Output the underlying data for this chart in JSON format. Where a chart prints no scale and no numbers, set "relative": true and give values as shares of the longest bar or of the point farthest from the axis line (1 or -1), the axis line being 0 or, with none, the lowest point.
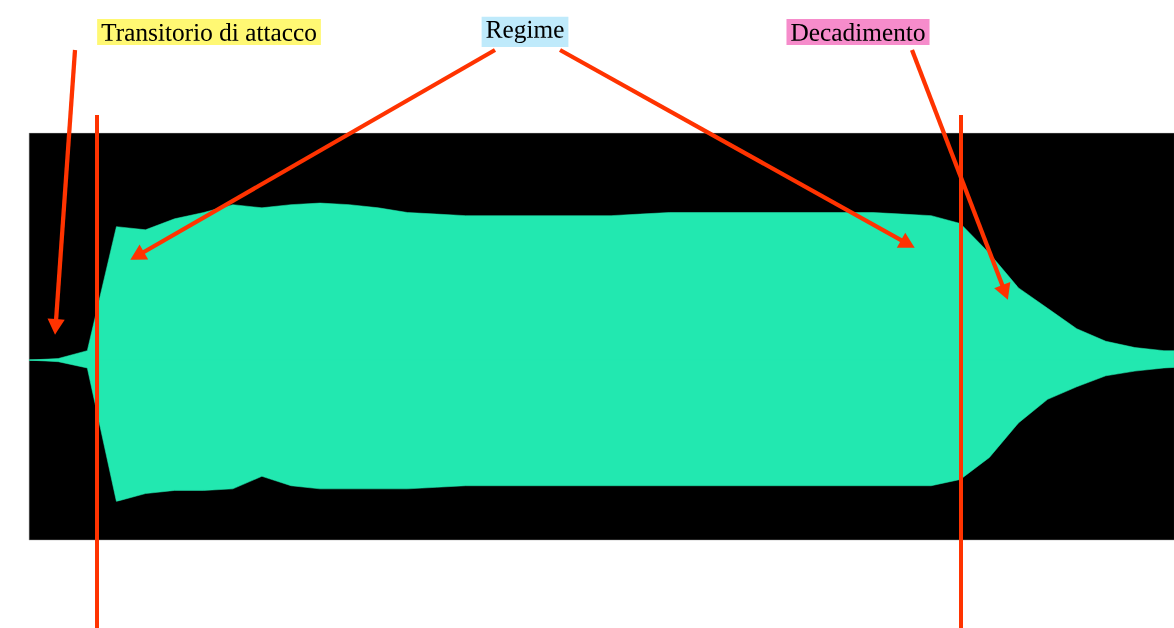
{
  "chart_data": {
    "type": "area",
    "relative": true,
    "categories": [
      null,
      null,
      null,
      null,
      null,
      null,
      null,
      null,
      null,
      null,
      null,
      null,
      null,
      null,
      null,
      null,
      null,
      null,
      null,
      null,
      null,
      null,
      null,
      null,
      null,
      null,
      null,
      null,
      null,
      null,
      null,
      null,
      null,
      null,
      null,
      null,
      null,
      null,
      null,
      null,
      null
    ],
    "series": [
      {
        "color": "#22e8b0",
        "values": [
          0,
          0.01,
          0.06,
          0.85,
          0.83,
          0.9,
          0.94,
          0.99,
          0.97,
          0.99,
          1,
          0.99,
          0.97,
          0.94,
          0.93,
          0.92,
          0.92,
          0.92,
          0.92,
          0.92,
          0.92,
          0.93,
          0.94,
          0.94,
          0.94,
          0.94,
          0.94,
          0.94,
          0.94,
          0.94,
          0.93,
          0.92,
          0.87,
          0.68,
          0.46,
          0.33,
          0.2,
          0.12,
          0.08,
          0.06,
          0.06
        ]
      },
      {
        "color": "#22e8b0",
        "values": [
          0,
          -0.01,
          -0.05,
          -0.9,
          -0.85,
          -0.83,
          -0.83,
          -0.82,
          -0.74,
          -0.8,
          -0.82,
          -0.82,
          -0.82,
          -0.82,
          -0.81,
          -0.8,
          -0.8,
          -0.8,
          -0.8,
          -0.8,
          -0.8,
          -0.8,
          -0.8,
          -0.8,
          -0.8,
          -0.8,
          -0.8,
          -0.8,
          -0.8,
          -0.8,
          -0.8,
          -0.8,
          -0.76,
          -0.62,
          -0.4,
          -0.25,
          -0.17,
          -0.1,
          -0.07,
          -0.05,
          -0.04
        ]
      }
    ],
    "annotations": [
      "Transitorio di attacco",
      "Regime",
      "Decadimento"
    ]
  }
}
